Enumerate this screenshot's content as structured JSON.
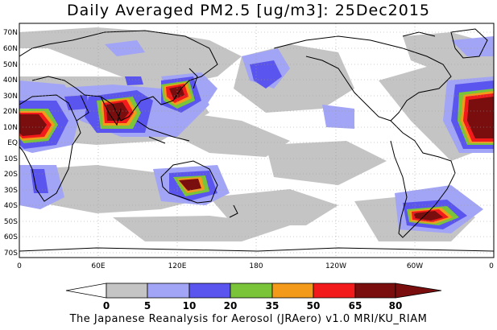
{
  "title": "Daily Averaged PM2.5 [ug/m3]: 25Dec2015",
  "footer": "The Japanese Reanalysis for Aerosol (JRAero) v1.0 MRI/KU_RIAM",
  "lat_labels": [
    "70N",
    "60N",
    "50N",
    "40N",
    "30N",
    "20N",
    "10N",
    "EQ",
    "10S",
    "20S",
    "30S",
    "40S",
    "50S",
    "60S",
    "70S"
  ],
  "lon_labels": [
    "0",
    "60E",
    "120E",
    "180",
    "120W",
    "60W",
    "0"
  ],
  "colorbar": {
    "ticks": [
      "0",
      "5",
      "10",
      "20",
      "35",
      "50",
      "65",
      "80"
    ],
    "colors": [
      "#ffffff",
      "#c4c4c4",
      "#a2a4f6",
      "#5b55f0",
      "#7ac43a",
      "#f39a1a",
      "#f21a1a",
      "#7a0d0d"
    ]
  }
}
